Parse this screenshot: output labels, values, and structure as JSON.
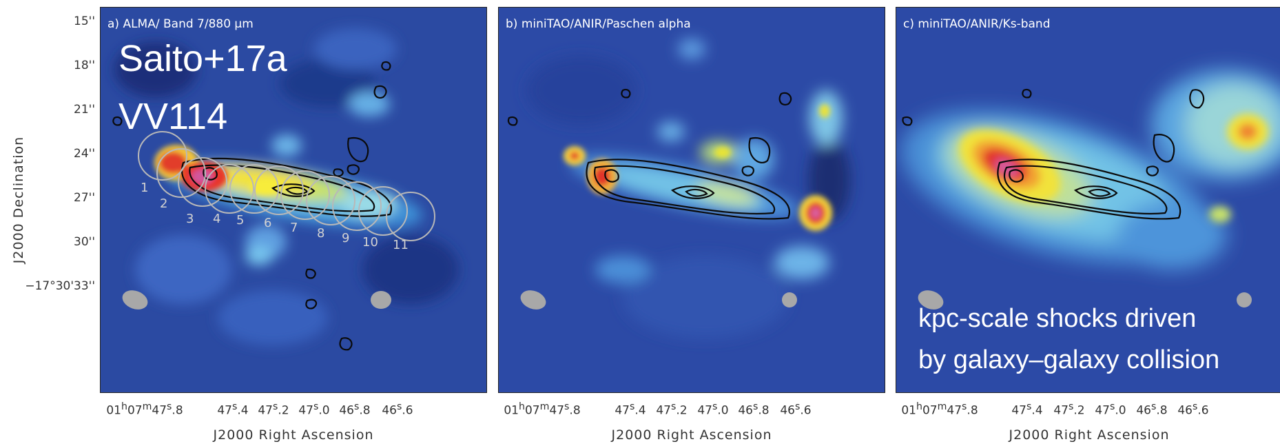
{
  "figure": {
    "y_axis": {
      "label": "J2000 Declination",
      "ticks": [
        "15''",
        "18''",
        "21''",
        "24''",
        "27''",
        "30''",
        "−17°30'33''"
      ]
    },
    "x_axis": {
      "label": "J2000 Right Ascension",
      "ticks": [
        "01h07m47s.8",
        "47s.4",
        "47s.2",
        "47s.0",
        "46s.8",
        "46s.6"
      ]
    },
    "panels": [
      {
        "id": "a",
        "title": "a) ALMA/ Band 7/880 µm"
      },
      {
        "id": "b",
        "title": "b) miniTAO/ANIR/Paschen alpha"
      },
      {
        "id": "c",
        "title": "c) miniTAO/ANIR/Ks-band"
      }
    ],
    "aperture_labels": [
      "1",
      "2",
      "3",
      "4",
      "5",
      "6",
      "7",
      "8",
      "9",
      "10",
      "11"
    ]
  },
  "overlay": {
    "citation": "Saito+17a",
    "object": "VV114",
    "note_line1": "kpc-scale shocks driven",
    "note_line2": "by galaxy–galaxy collision"
  }
}
